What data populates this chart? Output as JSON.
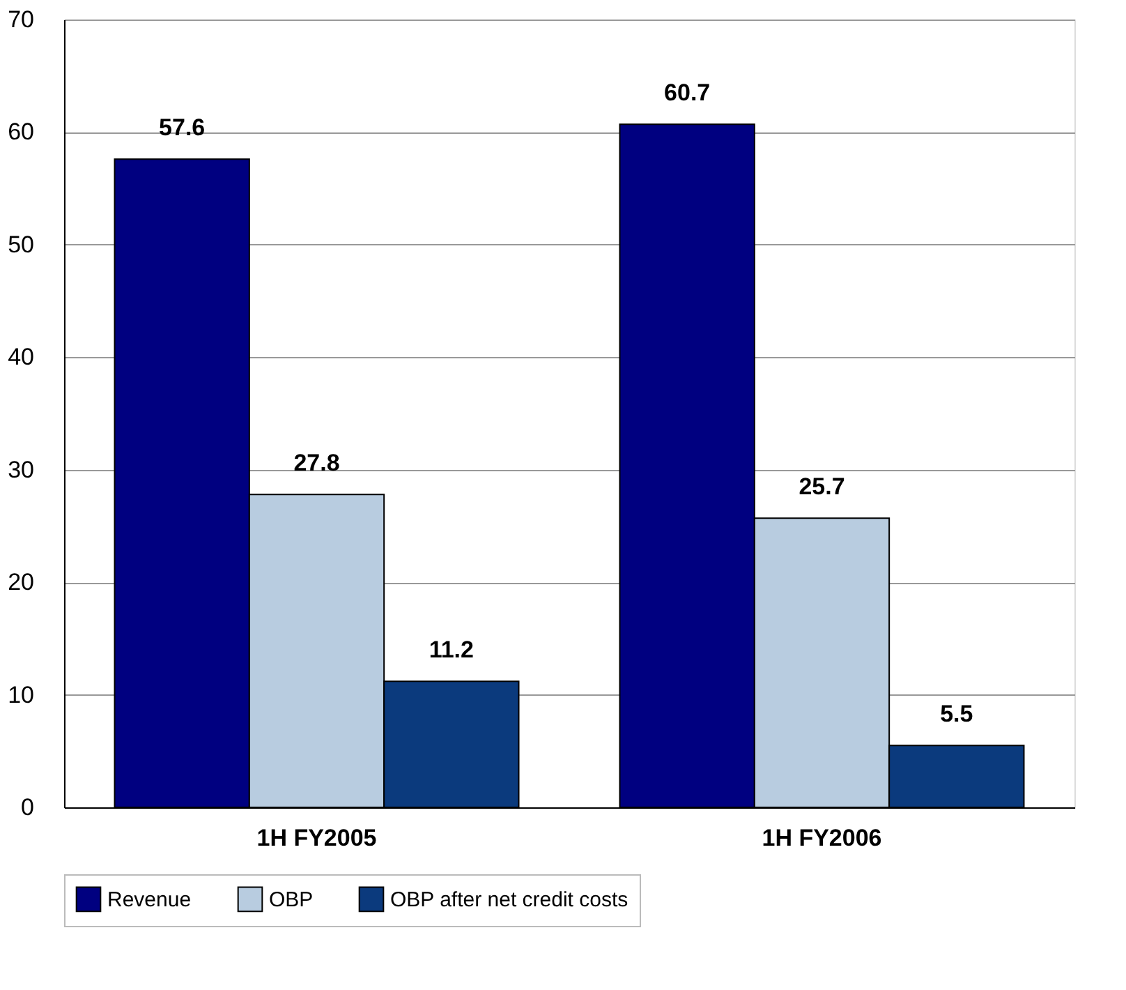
{
  "chart_data": {
    "type": "bar",
    "categories": [
      "1H FY2005",
      "1H FY2006"
    ],
    "series": [
      {
        "name": "Revenue",
        "color": "#000080",
        "values": [
          57.6,
          60.7
        ]
      },
      {
        "name": "OBP",
        "color": "#b8cce0",
        "values": [
          27.8,
          25.7
        ]
      },
      {
        "name": "OBP after net credit costs",
        "color": "#0b3a7d",
        "values": [
          11.2,
          5.5
        ]
      }
    ],
    "ylim": [
      0,
      70
    ],
    "yticks": [
      0,
      10,
      20,
      30,
      40,
      50,
      60,
      70
    ],
    "grid": "y",
    "legend": "bottom",
    "data_labels": true
  }
}
